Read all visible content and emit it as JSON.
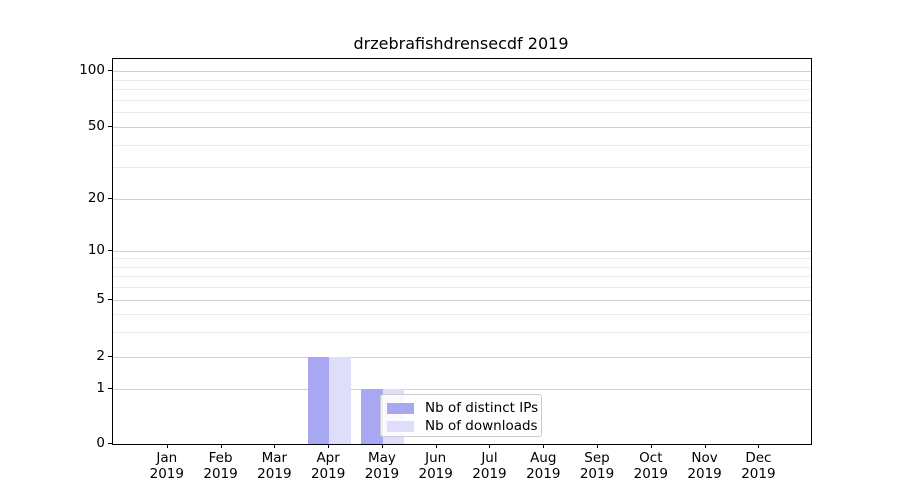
{
  "title": "drzebrafishdrensecdf 2019",
  "legend": {
    "items": [
      {
        "label": "Nb of distinct IPs",
        "color": "#a8a8f2"
      },
      {
        "label": "Nb of downloads",
        "color": "#dedefa"
      }
    ]
  },
  "chart_data": {
    "type": "bar",
    "title": "drzebrafishdrensecdf 2019",
    "categories": [
      "Jan 2019",
      "Feb 2019",
      "Mar 2019",
      "Apr 2019",
      "May 2019",
      "Jun 2019",
      "Jul 2019",
      "Aug 2019",
      "Sep 2019",
      "Oct 2019",
      "Nov 2019",
      "Dec 2019"
    ],
    "series": [
      {
        "name": "Nb of distinct IPs",
        "color": "#a8a8f2",
        "values": [
          0,
          0,
          0,
          2,
          1,
          0,
          0,
          0,
          0,
          0,
          0,
          0
        ]
      },
      {
        "name": "Nb of downloads",
        "color": "#dedefa",
        "values": [
          0,
          0,
          0,
          2,
          1,
          0,
          0,
          0,
          0,
          0,
          0,
          0
        ]
      }
    ],
    "xlabel": "",
    "ylabel": "",
    "yscale": "symlog",
    "ylim": [
      0,
      100
    ],
    "y_major_ticks": [
      0,
      1,
      2,
      5,
      10,
      20,
      50,
      100
    ],
    "y_minor_ticks": [
      3,
      4,
      6,
      7,
      8,
      9,
      30,
      40,
      60,
      70,
      80,
      90
    ],
    "grid": "both horizontal",
    "legend_position": "lower center"
  }
}
